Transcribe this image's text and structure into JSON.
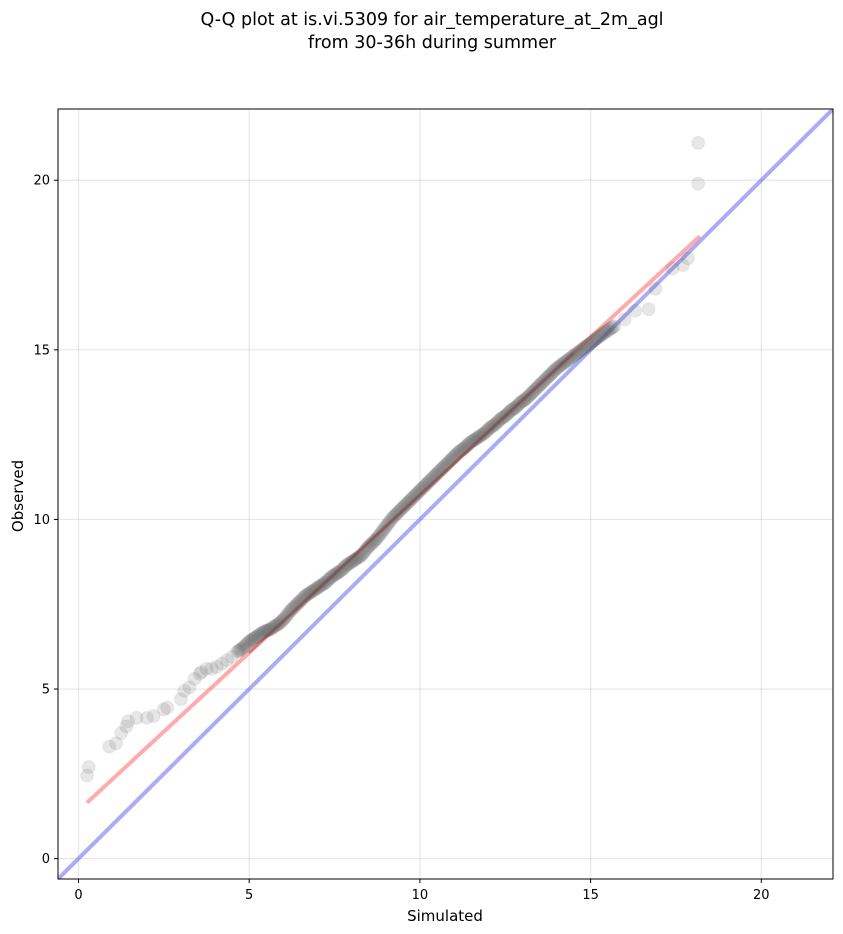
{
  "chart_data": {
    "type": "scatter",
    "title_lines": [
      "Q-Q plot at is.vi.5309 for air_temperature_at_2m_agl",
      "from 30-36h during summer"
    ],
    "xlabel": "Simulated",
    "ylabel": "Observed",
    "xlim": [
      -0.6,
      22.1
    ],
    "ylim": [
      -0.6,
      22.1
    ],
    "xticks": [
      0,
      5,
      10,
      15,
      20
    ],
    "yticks": [
      0,
      5,
      10,
      15,
      20
    ],
    "xtick_labels": [
      "0",
      "5",
      "10",
      "15",
      "20"
    ],
    "ytick_labels": [
      "0",
      "5",
      "10",
      "15",
      "20"
    ],
    "grid": true,
    "series": [
      {
        "kind": "quantile-points",
        "color": "#555555",
        "x": [
          0.25,
          0.3,
          0.9,
          1.1,
          1.25,
          1.4,
          1.45,
          1.7,
          2.0,
          2.2,
          2.5,
          2.6,
          3.0,
          3.1,
          3.25,
          3.4,
          3.55,
          3.6,
          3.75,
          3.9,
          4.05,
          4.2,
          4.35,
          4.5,
          4.65,
          4.8,
          5.0,
          5.15,
          5.3,
          5.45,
          5.6,
          5.75,
          5.9,
          6.05,
          6.2,
          6.35,
          6.5,
          6.65,
          6.8,
          6.95,
          7.1,
          7.25,
          7.4,
          7.55,
          7.7,
          7.85,
          8.0,
          8.15,
          8.3,
          8.45,
          8.6,
          8.75,
          8.9,
          9.05,
          9.2,
          9.35,
          9.5,
          9.65,
          9.8,
          9.95,
          10.1,
          10.25,
          10.4,
          10.55,
          10.7,
          10.85,
          11.0,
          11.15,
          11.3,
          11.45,
          11.6,
          11.75,
          11.9,
          12.05,
          12.2,
          12.35,
          12.5,
          12.65,
          12.8,
          12.95,
          13.1,
          13.25,
          13.4,
          13.55,
          13.7,
          13.85,
          14.0,
          14.2,
          14.4,
          14.6,
          14.8,
          15.0,
          15.2,
          15.4,
          15.7,
          16.0,
          16.3,
          16.7,
          16.9,
          17.4,
          17.7,
          17.85,
          18.15,
          18.15
        ],
        "y": [
          2.45,
          2.7,
          3.3,
          3.4,
          3.7,
          3.9,
          4.05,
          4.15,
          4.15,
          4.2,
          4.4,
          4.45,
          4.7,
          4.95,
          5.05,
          5.3,
          5.45,
          5.5,
          5.6,
          5.6,
          5.65,
          5.75,
          5.85,
          5.95,
          6.1,
          6.2,
          6.4,
          6.5,
          6.6,
          6.7,
          6.75,
          6.85,
          6.95,
          7.1,
          7.3,
          7.45,
          7.6,
          7.75,
          7.85,
          7.95,
          8.05,
          8.15,
          8.3,
          8.4,
          8.5,
          8.65,
          8.75,
          8.85,
          8.95,
          9.15,
          9.3,
          9.45,
          9.65,
          9.85,
          10.05,
          10.2,
          10.35,
          10.5,
          10.65,
          10.8,
          10.95,
          11.1,
          11.25,
          11.4,
          11.55,
          11.7,
          11.85,
          12.0,
          12.1,
          12.25,
          12.35,
          12.45,
          12.55,
          12.7,
          12.8,
          12.95,
          13.05,
          13.2,
          13.3,
          13.45,
          13.55,
          13.7,
          13.85,
          14.0,
          14.15,
          14.3,
          14.45,
          14.6,
          14.75,
          14.9,
          15.05,
          15.2,
          15.35,
          15.5,
          15.7,
          15.9,
          16.15,
          16.2,
          16.8,
          17.4,
          17.5,
          17.7,
          19.9,
          21.1
        ]
      },
      {
        "kind": "fit-line",
        "color": "#ff6666",
        "x": [
          0.25,
          18.2
        ],
        "y": [
          1.65,
          18.35
        ]
      },
      {
        "kind": "identity-line",
        "color": "#6666ee",
        "x": [
          -0.6,
          22.1
        ],
        "y": [
          -0.6,
          22.1
        ]
      }
    ]
  }
}
